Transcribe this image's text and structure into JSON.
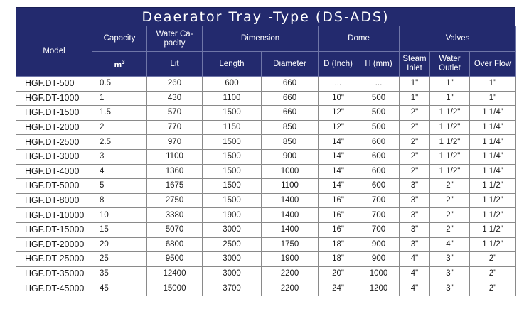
{
  "title": "Deaerator Tray -Type (DS-ADS)",
  "headers": {
    "model": "Model",
    "capacity": "Capacity",
    "capacity_unit_base": "m",
    "capacity_unit_exp": "3",
    "water_capacity": "Water Ca-pacity",
    "water_capacity_unit": "Lit",
    "dimension": "Dimension",
    "length": "Length",
    "diameter": "Diameter",
    "dome": "Dome",
    "d_inch": "D (Inch)",
    "h_mm": "H (mm)",
    "valves": "Valves",
    "steam_inlet": "Steam Inlet",
    "water_outlet": "Water Outlet",
    "over_flow": "Over Flow"
  },
  "rows": [
    {
      "model": "HGF.DT-500",
      "capacity": "0.5",
      "water": "260",
      "length": "600",
      "diameter": "660",
      "d_inch": "...",
      "h_mm": "...",
      "steam": "1\"",
      "outlet": "1\"",
      "overflow": "1\""
    },
    {
      "model": "HGF.DT-1000",
      "capacity": "1",
      "water": "430",
      "length": "1100",
      "diameter": "660",
      "d_inch": "10\"",
      "h_mm": "500",
      "steam": "1\"",
      "outlet": "1\"",
      "overflow": "1\""
    },
    {
      "model": "HGF.DT-1500",
      "capacity": "1.5",
      "water": "570",
      "length": "1500",
      "diameter": "660",
      "d_inch": "12\"",
      "h_mm": "500",
      "steam": "2\"",
      "outlet": "1 1/2\"",
      "overflow": "1 1/4\""
    },
    {
      "model": "HGF.DT-2000",
      "capacity": "2",
      "water": "770",
      "length": "1150",
      "diameter": "850",
      "d_inch": "12\"",
      "h_mm": "500",
      "steam": "2\"",
      "outlet": "1 1/2\"",
      "overflow": "1 1/4\""
    },
    {
      "model": "HGF.DT-2500",
      "capacity": "2.5",
      "water": "970",
      "length": "1500",
      "diameter": "850",
      "d_inch": "14\"",
      "h_mm": "600",
      "steam": "2\"",
      "outlet": "1 1/2\"",
      "overflow": "1 1/4\""
    },
    {
      "model": "HGF.DT-3000",
      "capacity": "3",
      "water": "1100",
      "length": "1500",
      "diameter": "900",
      "d_inch": "14\"",
      "h_mm": "600",
      "steam": "2\"",
      "outlet": "1 1/2\"",
      "overflow": "1 1/4\""
    },
    {
      "model": "HGF.DT-4000",
      "capacity": "4",
      "water": "1360",
      "length": "1500",
      "diameter": "1000",
      "d_inch": "14\"",
      "h_mm": "600",
      "steam": "2\"",
      "outlet": "1 1/2\"",
      "overflow": "1 1/4\""
    },
    {
      "model": "HGF.DT-5000",
      "capacity": "5",
      "water": "1675",
      "length": "1500",
      "diameter": "1100",
      "d_inch": "14\"",
      "h_mm": "600",
      "steam": "3\"",
      "outlet": "2\"",
      "overflow": "1 1/2\""
    },
    {
      "model": "HGF.DT-8000",
      "capacity": "8",
      "water": "2750",
      "length": "1500",
      "diameter": "1400",
      "d_inch": "16\"",
      "h_mm": "700",
      "steam": "3\"",
      "outlet": "2\"",
      "overflow": "1 1/2\""
    },
    {
      "model": "HGF.DT-10000",
      "capacity": "10",
      "water": "3380",
      "length": "1900",
      "diameter": "1400",
      "d_inch": "16\"",
      "h_mm": "700",
      "steam": "3\"",
      "outlet": "2\"",
      "overflow": "1 1/2\""
    },
    {
      "model": "HGF.DT-15000",
      "capacity": "15",
      "water": "5070",
      "length": "3000",
      "diameter": "1400",
      "d_inch": "16\"",
      "h_mm": "700",
      "steam": "3\"",
      "outlet": "2\"",
      "overflow": "1 1/2\""
    },
    {
      "model": "HGF.DT-20000",
      "capacity": "20",
      "water": "6800",
      "length": "2500",
      "diameter": "1750",
      "d_inch": "18\"",
      "h_mm": "900",
      "steam": "3\"",
      "outlet": "4\"",
      "overflow": "1 1/2\""
    },
    {
      "model": "HGF.DT-25000",
      "capacity": "25",
      "water": "9500",
      "length": "3000",
      "diameter": "1900",
      "d_inch": "18\"",
      "h_mm": "900",
      "steam": "4\"",
      "outlet": "3\"",
      "overflow": "2\""
    },
    {
      "model": "HGF.DT-35000",
      "capacity": "35",
      "water": "12400",
      "length": "3000",
      "diameter": "2200",
      "d_inch": "20\"",
      "h_mm": "1000",
      "steam": "4\"",
      "outlet": "3\"",
      "overflow": "2\""
    },
    {
      "model": "HGF.DT-45000",
      "capacity": "45",
      "water": "15000",
      "length": "3700",
      "diameter": "2200",
      "d_inch": "24\"",
      "h_mm": "1200",
      "steam": "4\"",
      "outlet": "3\"",
      "overflow": "2\""
    }
  ],
  "colors": {
    "header_bg": "#232a6e",
    "header_text": "#ffffff",
    "grid": "#8a8a8a"
  }
}
